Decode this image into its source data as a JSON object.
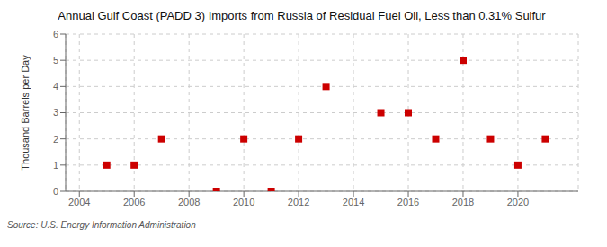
{
  "chart_data": {
    "type": "scatter",
    "title": "Annual Gulf Coast (PADD 3) Imports from Russia of Residual Fuel Oil, Less than 0.31% Sulfur",
    "y_label": "Thousand Barrels per Day",
    "source": "Source: U.S. Energy Information Administration",
    "x": [
      2005,
      2006,
      2007,
      2009,
      2010,
      2011,
      2012,
      2013,
      2015,
      2016,
      2017,
      2018,
      2019,
      2020,
      2021
    ],
    "values": [
      1,
      1,
      2,
      0,
      2,
      0,
      2,
      4,
      3,
      3,
      2,
      5,
      2,
      1,
      2
    ],
    "color": "#cc0000",
    "marker": "square",
    "xlim": [
      2003.5,
      2022.2
    ],
    "xticks": [
      2004,
      2006,
      2008,
      2010,
      2012,
      2014,
      2016,
      2018,
      2020
    ],
    "ylim": [
      0,
      6
    ],
    "yticks": [
      0,
      1,
      2,
      3,
      4,
      5,
      6
    ],
    "grid": true
  }
}
